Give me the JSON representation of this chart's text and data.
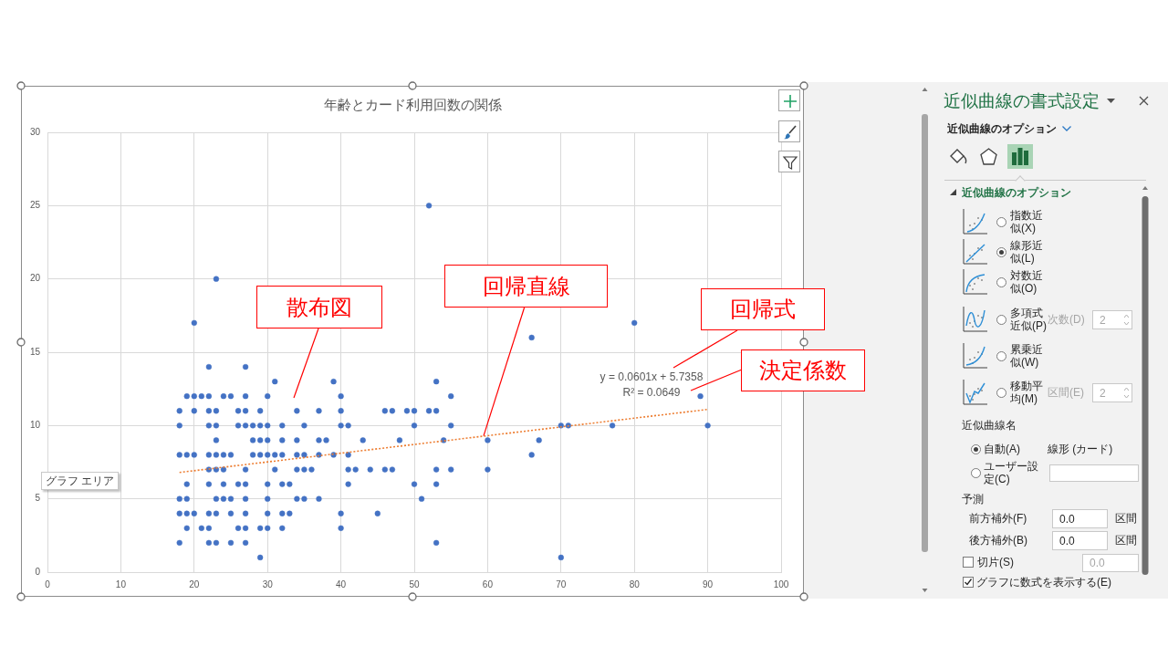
{
  "chart_data": [
    {
      "type": "scatter",
      "title": "年齢とカード利用回数の関係",
      "xlim": [
        0,
        100
      ],
      "xticks": [
        0,
        10,
        20,
        30,
        40,
        50,
        60,
        70,
        80,
        90,
        100
      ],
      "ylim": [
        0,
        30
      ],
      "yticks": [
        0,
        5,
        10,
        15,
        20,
        25,
        30
      ],
      "grid": true,
      "marker": "circle",
      "series": [
        {
          "type": "scatter",
          "color": "#4472c4",
          "x": [
            52,
            23,
            20,
            80,
            66,
            22,
            27,
            31,
            39,
            53,
            19,
            20,
            21,
            22,
            24,
            25,
            27,
            30,
            40,
            55,
            89,
            18,
            20,
            22,
            23,
            26,
            27,
            29,
            34,
            37,
            40,
            46,
            47,
            49,
            50,
            52,
            53,
            18,
            22,
            23,
            26,
            27,
            28,
            29,
            30,
            32,
            35,
            40,
            41,
            50,
            55,
            70,
            71,
            77,
            90,
            23,
            28,
            29,
            30,
            32,
            34,
            37,
            38,
            43,
            48,
            54,
            60,
            67,
            18,
            19,
            20,
            22,
            23,
            24,
            25,
            28,
            29,
            30,
            31,
            32,
            34,
            35,
            37,
            39,
            41,
            66,
            22,
            23,
            24,
            27,
            31,
            34,
            35,
            36,
            41,
            42,
            44,
            46,
            47,
            53,
            55,
            60,
            19,
            22,
            24,
            26,
            27,
            30,
            32,
            33,
            41,
            50,
            53,
            18,
            19,
            23,
            24,
            25,
            27,
            30,
            34,
            35,
            37,
            51,
            18,
            19,
            20,
            22,
            23,
            25,
            27,
            30,
            32,
            33,
            40,
            45,
            19,
            21,
            22,
            26,
            27,
            29,
            30,
            32,
            40,
            18,
            22,
            23,
            25,
            27,
            53,
            29,
            70
          ],
          "values": [
            25,
            20,
            17,
            17,
            16,
            14,
            14,
            13,
            13,
            13,
            12,
            12,
            12,
            12,
            12,
            12,
            12,
            12,
            12,
            12,
            12,
            11,
            11,
            11,
            11,
            11,
            11,
            11,
            11,
            11,
            11,
            11,
            11,
            11,
            11,
            11,
            11,
            10,
            10,
            10,
            10,
            10,
            10,
            10,
            10,
            10,
            10,
            10,
            10,
            10,
            10,
            10,
            10,
            10,
            10,
            9,
            9,
            9,
            9,
            9,
            9,
            9,
            9,
            9,
            9,
            9,
            9,
            9,
            8,
            8,
            8,
            8,
            8,
            8,
            8,
            8,
            8,
            8,
            8,
            8,
            8,
            8,
            8,
            8,
            8,
            8,
            7,
            7,
            7,
            7,
            7,
            7,
            7,
            7,
            7,
            7,
            7,
            7,
            7,
            7,
            7,
            7,
            6,
            6,
            6,
            6,
            6,
            6,
            6,
            6,
            6,
            6,
            6,
            5,
            5,
            5,
            5,
            5,
            5,
            5,
            5,
            5,
            5,
            5,
            4,
            4,
            4,
            4,
            4,
            4,
            4,
            4,
            4,
            4,
            4,
            4,
            3,
            3,
            3,
            3,
            3,
            3,
            3,
            3,
            3,
            2,
            2,
            2,
            2,
            2,
            2,
            1,
            1
          ]
        },
        {
          "type": "line",
          "color": "#ed7d31",
          "x": [
            18,
            90
          ],
          "values": [
            6.8,
            11.1
          ],
          "line_style": "dotted",
          "marker": "none"
        }
      ],
      "annotations": [
        "散布図",
        {
          "text": "回帰直線",
          "x": 59.5,
          "y": 9.3
        },
        "回帰式",
        "決定係数",
        "y = 0.0601x + 5.7358",
        "R² = 0.0649",
        "グラフ エリア"
      ]
    },
    {
      "type": "other",
      "title": "近似曲線の書式設定",
      "annotations": [
        "近似曲線のオプション",
        "近似曲線のオプション",
        "指数近似(X)",
        "線形近似(L)",
        "対数近似(O)",
        "多項式近似(P)",
        "次数(D)",
        "2",
        "累乗近似(W)",
        "移動平均(M)",
        "区間(E)",
        "2",
        "近似曲線名",
        "自動(A)",
        "線形 (カード)",
        "ユーザー設定(C)",
        "予測",
        "前方補外(F)",
        "0.0",
        "区間",
        "後方補外(B)",
        "0.0",
        "区間",
        "切片(S)",
        "0.0",
        "グラフに数式を表示する(E)"
      ]
    }
  ]
}
